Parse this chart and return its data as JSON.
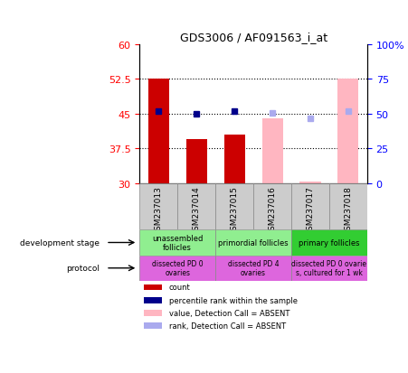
{
  "title": "GDS3006 / AF091563_i_at",
  "samples": [
    "GSM237013",
    "GSM237014",
    "GSM237015",
    "GSM237016",
    "GSM237017",
    "GSM237018"
  ],
  "bar_values": [
    52.5,
    39.5,
    40.5,
    null,
    null,
    null
  ],
  "bar_color": "#cc0000",
  "bar_absent_values": [
    null,
    null,
    null,
    44.0,
    30.3,
    52.5
  ],
  "bar_absent_color": "#ffb6c1",
  "rank_present": [
    45.5,
    45.0,
    45.5,
    null,
    null,
    null
  ],
  "rank_present_color": "#00008b",
  "rank_absent": [
    null,
    null,
    null,
    45.2,
    44.0,
    45.5
  ],
  "rank_absent_color": "#aaaaee",
  "ylim_left": [
    30,
    60
  ],
  "ylim_right": [
    0,
    100
  ],
  "yticks_left": [
    30,
    37.5,
    45,
    52.5,
    60
  ],
  "yticks_right": [
    0,
    25,
    50,
    75,
    100
  ],
  "hlines": [
    37.5,
    45.0,
    52.5
  ],
  "dev_stage_groups": [
    {
      "label": "unassembled\nfollicles",
      "start": 0,
      "end": 2,
      "color": "#90ee90"
    },
    {
      "label": "primordial follicles",
      "start": 2,
      "end": 4,
      "color": "#90ee90"
    },
    {
      "label": "primary follicles",
      "start": 4,
      "end": 6,
      "color": "#32cd32"
    }
  ],
  "protocol_groups": [
    {
      "label": "dissected PD 0\novaries",
      "start": 0,
      "end": 2,
      "color": "#dd66dd"
    },
    {
      "label": "dissected PD 4\novaries",
      "start": 2,
      "end": 4,
      "color": "#dd66dd"
    },
    {
      "label": "dissected PD 0 ovarie\ns, cultured for 1 wk",
      "start": 4,
      "end": 6,
      "color": "#dd66dd"
    }
  ],
  "legend_items": [
    {
      "label": "count",
      "color": "#cc0000"
    },
    {
      "label": "percentile rank within the sample",
      "color": "#00008b"
    },
    {
      "label": "value, Detection Call = ABSENT",
      "color": "#ffb6c1"
    },
    {
      "label": "rank, Detection Call = ABSENT",
      "color": "#aaaaee"
    }
  ],
  "bar_bottom": 30,
  "bar_width": 0.55,
  "marker_size": 5
}
